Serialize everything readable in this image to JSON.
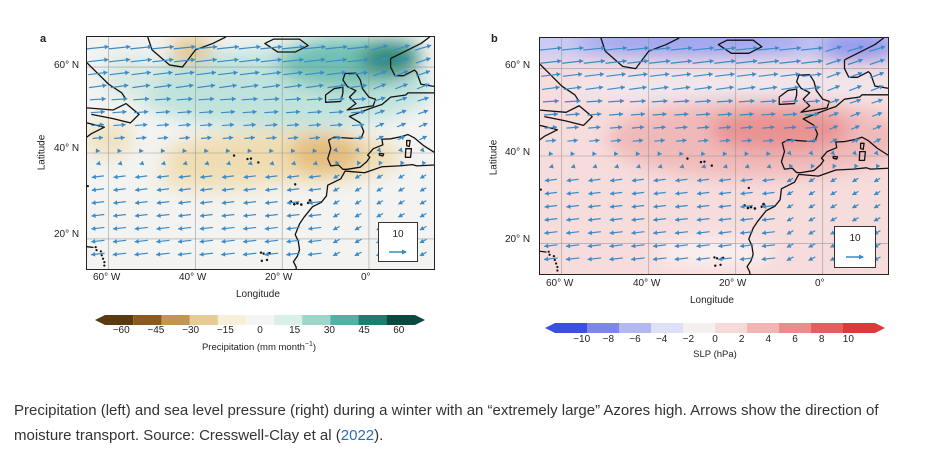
{
  "chart_data": [
    {
      "type": "heatmap",
      "panel": "a",
      "xlabel": "Longitude",
      "ylabel": "Latitude",
      "x_ticks": [
        "60° W",
        "40° W",
        "20° W",
        "0°"
      ],
      "y_ticks": [
        "60° N",
        "40° N",
        "20° N"
      ],
      "xlim": [
        -65,
        15
      ],
      "ylim": [
        13,
        67
      ],
      "colorbar": {
        "label": "Precipitation (mm month",
        "unit_exp": "−1",
        "label_close": ")",
        "ticks": [
          "−60",
          "−45",
          "−30",
          "−15",
          "0",
          "15",
          "30",
          "45",
          "60"
        ],
        "range": [
          -67,
          67
        ],
        "colors": [
          "#5a3a10",
          "#8c5a1e",
          "#c29553",
          "#e6cb95",
          "#f7efd9",
          "#f5f5f5",
          "#d8efea",
          "#9fd6cc",
          "#55b1a4",
          "#1f7d70",
          "#0c4a40"
        ]
      },
      "vector_legend": {
        "value": "10"
      },
      "arrow_color": "#3b8bc9"
    },
    {
      "type": "heatmap",
      "panel": "b",
      "xlabel": "Longitude",
      "ylabel": "Latitude",
      "x_ticks": [
        "60° W",
        "40° W",
        "20° W",
        "0°"
      ],
      "y_ticks": [
        "60° N",
        "40° N",
        "20° N"
      ],
      "xlim": [
        -65,
        15
      ],
      "ylim": [
        13,
        67
      ],
      "colorbar": {
        "label": "SLP (hPa)",
        "ticks": [
          "−10",
          "−8",
          "−6",
          "−4",
          "−2",
          "0",
          "2",
          "4",
          "6",
          "8",
          "10"
        ],
        "range": [
          -12,
          12
        ],
        "colors": [
          "#3b4fe0",
          "#7d87ea",
          "#b4b8f2",
          "#dedff8",
          "#f5f0f0",
          "#f6d9d9",
          "#f1b5b5",
          "#eb8c8c",
          "#e45f5f",
          "#dc3a3a"
        ]
      },
      "vector_legend": {
        "value": "10"
      },
      "arrow_color": "#3b8bc9"
    }
  ],
  "caption": {
    "text_before": "Precipitation (left) and sea level pressure (right) during a winter with an “extremely large” Azores high. Arrows show the direction of moisture transport. Source: Cresswell-Clay et al (",
    "link_text": "2022",
    "text_after": ")."
  }
}
